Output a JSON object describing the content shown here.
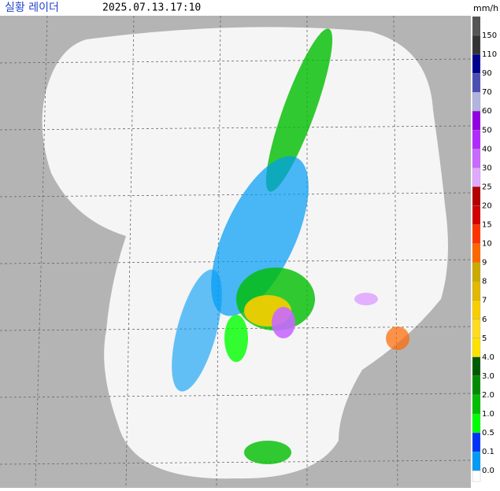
{
  "header": {
    "title": "실황 레이더",
    "timestamp": "2025.07.13.17:10"
  },
  "legend": {
    "unit": "mm/h",
    "top_color": "#555555",
    "items": [
      {
        "label": "150",
        "color": "#333333"
      },
      {
        "label": "110",
        "color": "#000390"
      },
      {
        "label": "90",
        "color": "#4c4eb1"
      },
      {
        "label": "70",
        "color": "#b3b4de"
      },
      {
        "label": "60",
        "color": "#9300e4"
      },
      {
        "label": "50",
        "color": "#b329ff"
      },
      {
        "label": "40",
        "color": "#c969ff"
      },
      {
        "label": "30",
        "color": "#e0a9ff"
      },
      {
        "label": "25",
        "color": "#b40000"
      },
      {
        "label": "20",
        "color": "#d20000"
      },
      {
        "label": "15",
        "color": "#ff3200"
      },
      {
        "label": "10",
        "color": "#ff6600"
      },
      {
        "label": "9",
        "color": "#ccaa00"
      },
      {
        "label": "8",
        "color": "#e0b900"
      },
      {
        "label": "7",
        "color": "#f9cd00"
      },
      {
        "label": "6",
        "color": "#ffdc1f"
      },
      {
        "label": "5",
        "color": "#ffe100"
      },
      {
        "label": "4.0",
        "color": "#005a00"
      },
      {
        "label": "3.0",
        "color": "#008c00"
      },
      {
        "label": "2.0",
        "color": "#00be00"
      },
      {
        "label": "1.0",
        "color": "#00ff00"
      },
      {
        "label": "0.5",
        "color": "#0033f5"
      },
      {
        "label": "0.1",
        "color": "#009bf5"
      },
      {
        "label": "0.0",
        "color": "#ffffff"
      }
    ]
  }
}
